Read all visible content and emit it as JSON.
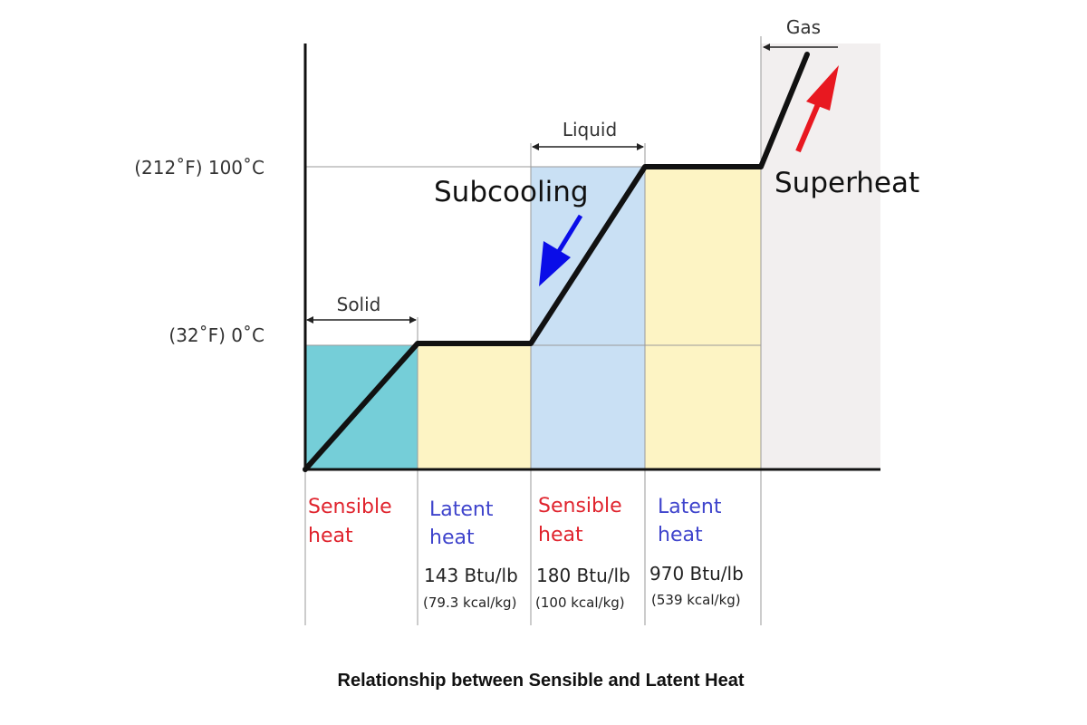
{
  "diagram": {
    "y_axis_labels": {
      "boiling": "(212˚F) 100˚C",
      "freezing": "(32˚F) 0˚C"
    },
    "phases": {
      "solid": "Solid",
      "liquid": "Liquid",
      "gas": "Gas"
    },
    "annotations": {
      "subcooling": "Subcooling",
      "superheat": "Superheat"
    },
    "columns": [
      {
        "line1": "Sensible",
        "line2": "heat",
        "type": "sensible",
        "btu": "",
        "kcal": ""
      },
      {
        "line1": "Latent",
        "line2": "heat",
        "type": "latent",
        "btu": "143 Btu/lb",
        "kcal": "(79.3 kcal/kg)"
      },
      {
        "line1": "Sensible",
        "line2": "heat",
        "type": "sensible",
        "btu": "180 Btu/lb",
        "kcal": "(100 kcal/kg)"
      },
      {
        "line1": "Latent",
        "line2": "heat",
        "type": "latent",
        "btu": "970 Btu/lb",
        "kcal": "(539 kcal/kg)"
      }
    ],
    "caption": "Relationship between Sensible and Latent Heat",
    "colors": {
      "solid_fill": "#75ced8",
      "latent_fill": "#fdf4c4",
      "liquid_fill": "#c9e0f4",
      "gas_fill": "#f2efef",
      "sensible_text": "#e0242e",
      "latent_text": "#3f44cc",
      "subcooling_arrow": "#0a0de8",
      "superheat_arrow": "#e81820",
      "curve": "#111111"
    }
  }
}
